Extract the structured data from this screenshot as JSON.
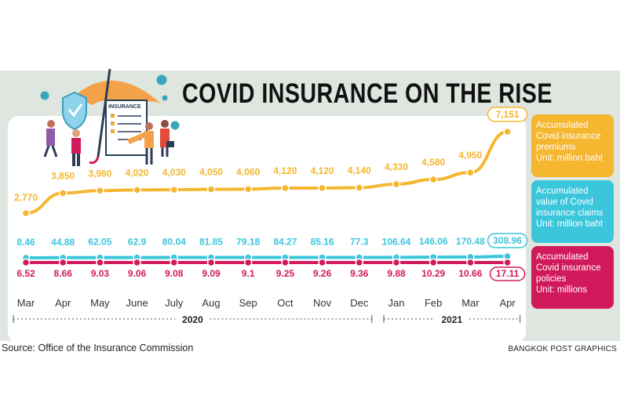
{
  "title": "COVID INSURANCE ON THE RISE",
  "source": "Source: Office of the Insurance Commission",
  "credit": "BANGKOK POST GRAPHICS",
  "illustration_text": "INSURANCE",
  "colors": {
    "premiums": "#f5b630",
    "claims": "#3bc6dc",
    "policies": "#d11a5b",
    "panel": "#dfe6df"
  },
  "legend": {
    "premiums": [
      "Accumulated",
      "Covid insurance",
      "premiums",
      "Unit: million baht"
    ],
    "claims": [
      "Accumulated",
      "value of Covid",
      "insurance claims",
      "Unit: million baht"
    ],
    "policies": [
      "Accumulated",
      "Covid insurance",
      "policies",
      "Unit: millions"
    ]
  },
  "chart_data": {
    "type": "line",
    "title": "COVID INSURANCE ON THE RISE",
    "categories": [
      "Mar",
      "Apr",
      "May",
      "June",
      "July",
      "Aug",
      "Sep",
      "Oct",
      "Nov",
      "Dec",
      "Jan",
      "Feb",
      "Mar",
      "Apr"
    ],
    "year_groups": [
      {
        "label": "2020",
        "from": 0,
        "to": 9
      },
      {
        "label": "2021",
        "from": 10,
        "to": 13
      }
    ],
    "series": [
      {
        "name": "Accumulated Covid insurance premiums (million baht)",
        "values": [
          2770,
          3850,
          3980,
          4020,
          4030,
          4050,
          4060,
          4120,
          4120,
          4140,
          4330,
          4580,
          4950,
          7151
        ],
        "labels": [
          "2,770",
          "3,850",
          "3,980",
          "4,020",
          "4,030",
          "4,050",
          "4,060",
          "4,120",
          "4,120",
          "4,140",
          "4,330",
          "4,580",
          "4,950",
          "7,151"
        ]
      },
      {
        "name": "Accumulated value of Covid insurance claims (million baht)",
        "values": [
          8.46,
          44.88,
          62.05,
          62.9,
          80.04,
          81.85,
          79.18,
          84.27,
          85.16,
          77.3,
          106.64,
          146.06,
          170.48,
          308.96
        ],
        "labels": [
          "8.46",
          "44.88",
          "62.05",
          "62.9",
          "80.04",
          "81.85",
          "79.18",
          "84.27",
          "85.16",
          "77.3",
          "106.64",
          "146.06",
          "170.48",
          "308.96"
        ]
      },
      {
        "name": "Accumulated Covid insurance policies (millions)",
        "values": [
          6.52,
          8.66,
          9.03,
          9.06,
          9.08,
          9.09,
          9.1,
          9.25,
          9.26,
          9.36,
          9.88,
          10.29,
          10.66,
          17.11
        ],
        "labels": [
          "6.52",
          "8.66",
          "9.03",
          "9.06",
          "9.08",
          "9.09",
          "9.1",
          "9.25",
          "9.26",
          "9.36",
          "9.88",
          "10.29",
          "10.66",
          "17.11"
        ]
      }
    ]
  }
}
